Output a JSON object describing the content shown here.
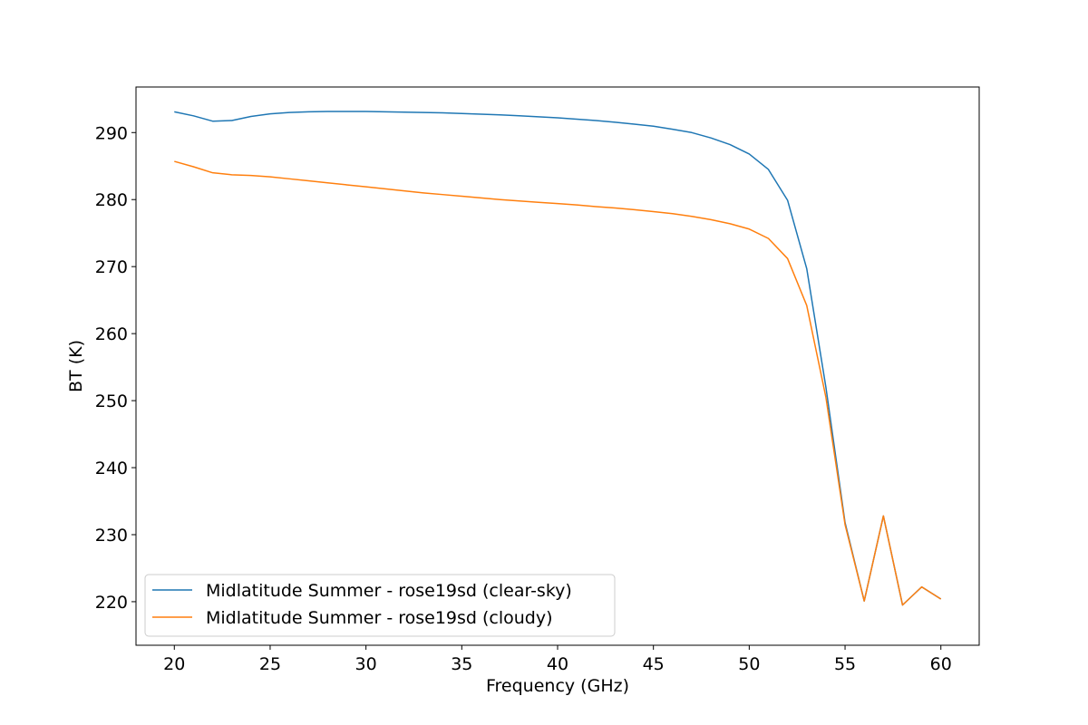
{
  "chart_data": {
    "type": "line",
    "title": "",
    "xlabel": "Frequency (GHz)",
    "ylabel": "BT (K)",
    "xlim": [
      18,
      62
    ],
    "ylim": [
      213.5,
      296.8
    ],
    "xticks": [
      20,
      25,
      30,
      35,
      40,
      45,
      50,
      55,
      60
    ],
    "yticks": [
      220,
      230,
      240,
      250,
      260,
      270,
      280,
      290
    ],
    "grid": false,
    "legend_position": "bottom-left",
    "x": [
      20,
      21,
      22,
      23,
      24,
      25,
      26,
      27,
      28,
      29,
      30,
      31,
      32,
      33,
      34,
      35,
      36,
      37,
      38,
      39,
      40,
      41,
      42,
      43,
      44,
      45,
      46,
      47,
      48,
      49,
      50,
      51,
      52,
      53,
      54,
      55,
      56,
      57,
      58,
      59,
      60
    ],
    "series": [
      {
        "name": "Midlatitude Summer - rose19sd (clear-sky)",
        "color": "#1f77b4",
        "values": [
          293.1,
          292.5,
          291.7,
          291.8,
          292.4,
          292.8,
          293.0,
          293.1,
          293.15,
          293.15,
          293.15,
          293.1,
          293.05,
          293.0,
          292.95,
          292.85,
          292.75,
          292.65,
          292.5,
          292.35,
          292.2,
          292.0,
          291.8,
          291.55,
          291.25,
          290.95,
          290.5,
          290.0,
          289.2,
          288.2,
          286.8,
          284.5,
          279.9,
          269.7,
          252.0,
          231.8,
          220.1,
          232.8,
          219.5,
          222.2,
          220.4
        ]
      },
      {
        "name": "Midlatitude Summer - rose19sd (cloudy)",
        "color": "#ff7f0e",
        "values": [
          285.7,
          284.9,
          284.0,
          283.7,
          283.6,
          283.4,
          283.1,
          282.8,
          282.5,
          282.2,
          281.9,
          281.6,
          281.3,
          281.0,
          280.75,
          280.5,
          280.25,
          280.0,
          279.8,
          279.6,
          279.4,
          279.2,
          278.95,
          278.75,
          278.5,
          278.2,
          277.9,
          277.5,
          277.0,
          276.4,
          275.6,
          274.2,
          271.2,
          264.2,
          250.5,
          231.5,
          220.1,
          232.8,
          219.5,
          222.2,
          220.4
        ]
      }
    ]
  }
}
